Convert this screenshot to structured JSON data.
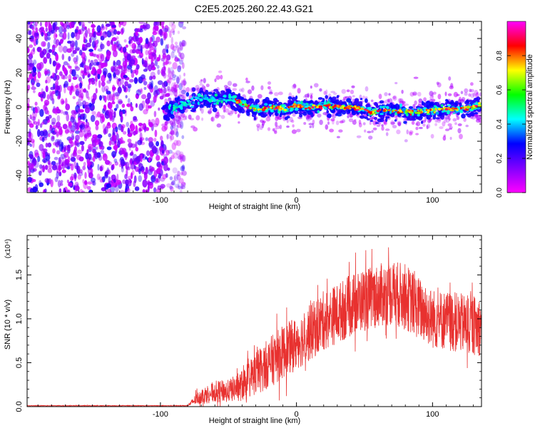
{
  "title": "C2E5.2025.260.22.43.G21",
  "chart_data": [
    {
      "type": "heatmap",
      "name": "spectrogram",
      "xlabel": "Height of straight line (km)",
      "ylabel": "Frequency (Hz)",
      "xlim": [
        -198,
        136
      ],
      "ylim": [
        -50,
        50
      ],
      "xticks": [
        -100,
        0,
        100
      ],
      "yticks": [
        -40,
        -20,
        0,
        20,
        40
      ],
      "colorbar": {
        "label": "Normalized spectral amplitude",
        "range": [
          0,
          1
        ],
        "ticks": [
          0.0,
          0.2,
          0.4,
          0.6,
          0.8
        ],
        "stops": [
          "#ff00ff",
          "#8000ff",
          "#0000ff",
          "#00ffff",
          "#00ff00",
          "#ffff00",
          "#ff0000",
          "#ff00ff"
        ]
      },
      "noise_region_km": [
        -198,
        -88
      ],
      "signal_ridge": {
        "x": [
          -98,
          -90,
          -80,
          -70,
          -60,
          -50,
          -42,
          -35,
          -28,
          -20,
          -10,
          0,
          10,
          20,
          30,
          40,
          50,
          55,
          62,
          70,
          80,
          90,
          100,
          110,
          120,
          130,
          136
        ],
        "y": [
          -2,
          0,
          2,
          5,
          4,
          6,
          3,
          0,
          -2,
          0,
          -1,
          1,
          0,
          1,
          0,
          0,
          -1,
          -3,
          -2,
          -2,
          -3,
          -3,
          -2,
          -1,
          -1,
          0,
          1
        ]
      }
    },
    {
      "type": "line",
      "name": "snr",
      "xlabel": "Height of straight line (km)",
      "ylabel": "SNR (10 * v/v)",
      "scale_label": "(x10⁴)",
      "xlim": [
        -198,
        136
      ],
      "ylim": [
        0,
        1.95
      ],
      "xticks": [
        -100,
        0,
        100
      ],
      "yticks": [
        0.0,
        0.5,
        1.0,
        1.5
      ],
      "color": "#e8312f",
      "envelope": {
        "x": [
          -198,
          -80,
          -75,
          -70,
          -60,
          -50,
          -40,
          -30,
          -20,
          -10,
          0,
          10,
          20,
          30,
          40,
          50,
          60,
          70,
          80,
          90,
          100,
          110,
          120,
          130,
          136
        ],
        "mean": [
          0.01,
          0.01,
          0.07,
          0.12,
          0.17,
          0.18,
          0.24,
          0.38,
          0.5,
          0.62,
          0.72,
          0.84,
          0.98,
          1.06,
          1.15,
          1.22,
          1.26,
          1.3,
          1.25,
          1.12,
          1.0,
          0.98,
          0.95,
          0.92,
          0.92
        ],
        "spread": [
          0.004,
          0.004,
          0.06,
          0.1,
          0.14,
          0.14,
          0.2,
          0.28,
          0.32,
          0.34,
          0.34,
          0.36,
          0.38,
          0.38,
          0.4,
          0.4,
          0.4,
          0.42,
          0.42,
          0.4,
          0.38,
          0.38,
          0.38,
          0.38,
          0.38
        ]
      }
    }
  ]
}
